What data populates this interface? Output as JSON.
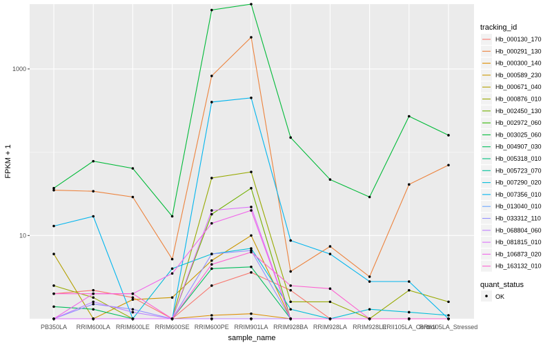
{
  "chart_data": {
    "type": "line",
    "title": "",
    "xlabel": "sample_name",
    "ylabel": "FPKM + 1",
    "y_scale": "log10",
    "ylim": [
      1,
      6000
    ],
    "y_ticks": [
      10,
      1000
    ],
    "y_tick_labels": [
      "10",
      "1000"
    ],
    "categories": [
      "PB350LA",
      "RRIM600LA",
      "RRIM600LE",
      "RRIM600SE",
      "RRIM600PE",
      "RRIM901LA",
      "RRIM928BA",
      "RRIM928LA",
      "RRIM928LE",
      "RRII105LA_Control",
      "RRII105LA_Stressed"
    ],
    "category_labels": [
      "PB350LA",
      "RRIM600LA",
      "RRIM600LE",
      "RRIM600SE",
      "RRIM600PE",
      "RRIM901LA",
      "RRIM928BA",
      "RRIM928LA",
      "RRIM928LE",
      "RRII105LA_Control",
      "RRII105LA_Stressed"
    ],
    "series": [
      {
        "name": "Hb_000130_170",
        "color": "#F8766D",
        "values": [
          2.0,
          2.2,
          1.8,
          1.0,
          2.5,
          3.6,
          2.2,
          1.0,
          1.0,
          1.0,
          1.0
        ]
      },
      {
        "name": "Hb_000291_130",
        "color": "#EC823C",
        "values": [
          35,
          34,
          29,
          5.2,
          825,
          2400,
          3.7,
          7.4,
          3.2,
          41,
          70
        ]
      },
      {
        "name": "Hb_000300_140",
        "color": "#DD8D00",
        "values": [
          1.0,
          1.0,
          1.0,
          1.0,
          1.1,
          1.15,
          1.0,
          1.0,
          1.0,
          1.0,
          1.0
        ]
      },
      {
        "name": "Hb_000589_230",
        "color": "#CA9700",
        "values": [
          1.0,
          1.0,
          1.7,
          1.8,
          5.0,
          10.0,
          1.0,
          1.0,
          1.0,
          1.0,
          1.0
        ]
      },
      {
        "name": "Hb_000671_040",
        "color": "#B3A000",
        "values": [
          6.0,
          1.0,
          1.0,
          1.0,
          1.0,
          1.0,
          1.0,
          1.0,
          1.0,
          1.0,
          1.0
        ]
      },
      {
        "name": "Hb_000876_010",
        "color": "#97A900",
        "values": [
          2.5,
          1.8,
          1.0,
          1.0,
          49,
          58,
          1.6,
          1.6,
          1.0,
          2.2,
          1.6
        ]
      },
      {
        "name": "Hb_002450_130",
        "color": "#71B000",
        "values": [
          1.0,
          1.0,
          1.0,
          1.0,
          18,
          37,
          1.0,
          1.0,
          1.0,
          1.0,
          1.0
        ]
      },
      {
        "name": "Hb_002972_060",
        "color": "#2FB600",
        "values": [
          1.0,
          1.0,
          1.0,
          1.0,
          1.0,
          1.0,
          1.0,
          1.0,
          1.0,
          1.0,
          1.0
        ]
      },
      {
        "name": "Hb_003025_060",
        "color": "#00BA38",
        "values": [
          37,
          78,
          64,
          17,
          5100,
          6000,
          150,
          47,
          29,
          270,
          160
        ]
      },
      {
        "name": "Hb_004907_030",
        "color": "#00BD5C",
        "values": [
          1.4,
          1.3,
          1.0,
          1.0,
          4.0,
          4.2,
          1.0,
          1.0,
          1.0,
          1.0,
          1.0
        ]
      },
      {
        "name": "Hb_005318_010",
        "color": "#00BF7D",
        "values": [
          1.0,
          1.0,
          1.0,
          1.0,
          1.0,
          1.0,
          1.0,
          1.0,
          1.0,
          1.0,
          1.0
        ]
      },
      {
        "name": "Hb_005723_070",
        "color": "#00C09A",
        "values": [
          1.0,
          1.0,
          1.0,
          1.0,
          1.0,
          1.0,
          1.0,
          1.0,
          1.0,
          1.0,
          1.0
        ]
      },
      {
        "name": "Hb_007290_020",
        "color": "#00BCD8",
        "values": [
          1.0,
          1.0,
          1.0,
          4.0,
          6.0,
          7.0,
          1.3,
          1.0,
          1.3,
          1.2,
          1.1
        ]
      },
      {
        "name": "Hb_007356_010",
        "color": "#00B5EE",
        "values": [
          13,
          17,
          1.0,
          1.0,
          400,
          450,
          8.7,
          6.0,
          2.8,
          2.8,
          1.0
        ]
      },
      {
        "name": "Hb_013040_010",
        "color": "#6BA5FF",
        "values": [
          1.0,
          1.0,
          1.0,
          1.0,
          1.0,
          1.0,
          1.0,
          1.0,
          1.0,
          1.0,
          1.0
        ]
      },
      {
        "name": "Hb_033312_110",
        "color": "#9590FF",
        "values": [
          1.0,
          1.5,
          1.3,
          1.0,
          6.0,
          6.6,
          1.0,
          1.0,
          1.0,
          1.0,
          1.0
        ]
      },
      {
        "name": "Hb_068804_060",
        "color": "#BE80FF",
        "values": [
          1.0,
          1.6,
          1.2,
          1.0,
          1.0,
          1.0,
          1.0,
          1.0,
          1.0,
          1.0,
          1.0
        ]
      },
      {
        "name": "Hb_081815_010",
        "color": "#DC71FA",
        "values": [
          1.0,
          1.0,
          1.0,
          1.0,
          20,
          22,
          1.0,
          1.0,
          1.0,
          1.0,
          1.0
        ]
      },
      {
        "name": "Hb_106873_020",
        "color": "#F066EA",
        "values": [
          1.0,
          2.0,
          2.0,
          3.5,
          14,
          20,
          1.0,
          1.0,
          1.0,
          1.0,
          1.0
        ]
      },
      {
        "name": "Hb_163132_010",
        "color": "#FD61D1",
        "values": [
          2.0,
          2.0,
          2.0,
          1.0,
          4.5,
          6.3,
          2.5,
          2.3,
          1.0,
          1.0,
          1.0
        ]
      }
    ],
    "legend": {
      "position": "right",
      "title": "tracking_id",
      "quant_title": "quant_status",
      "quant_label": "OK"
    },
    "grid": true
  }
}
